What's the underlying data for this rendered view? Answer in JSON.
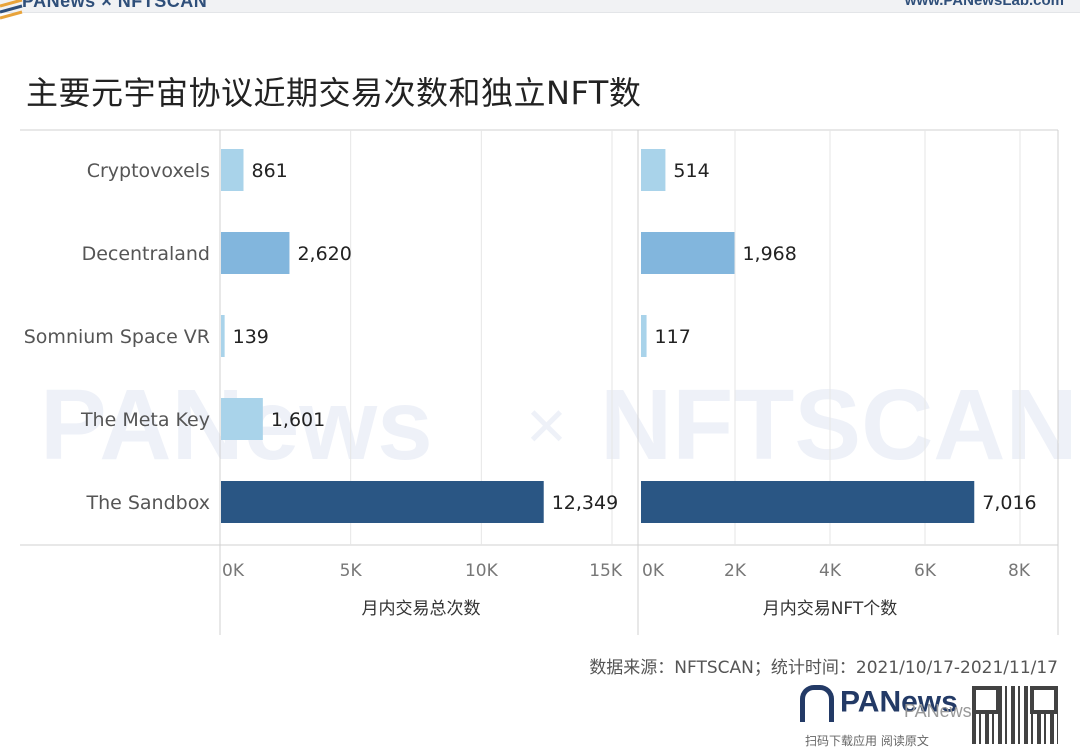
{
  "header": {
    "brand": "PANews × NFTSCAN",
    "url": "www.PANewsLab.com"
  },
  "title": "主要元宇宙协议近期交易次数和独立NFT数",
  "source": "数据来源：NFTSCAN；统计时间：2021/10/17-2021/11/17",
  "footer": {
    "logo_text": "PANews",
    "wechat_watermark": "PANews",
    "caption": "扫码下载应用 阅读原文"
  },
  "watermark": {
    "left": "PANews",
    "cross": "×",
    "right": "NFTSCAN"
  },
  "colors": {
    "light": "#a9d3ea",
    "mid": "#82b6dd",
    "dark": "#2a5684",
    "grid": "#e6e6e6",
    "divider": "#d0d0d0"
  },
  "chart_data": {
    "type": "bar",
    "orientation": "horizontal",
    "categories": [
      "Cryptovoxels",
      "Decentraland",
      "Somnium Space VR",
      "The Meta Key",
      "The Sandbox"
    ],
    "panels": [
      {
        "name": "月内交易总次数",
        "xlabel": "月内交易总次数",
        "values": [
          861,
          2620,
          139,
          1601,
          12349
        ],
        "value_labels": [
          "861",
          "2,620",
          "139",
          "1,601",
          "12,349"
        ],
        "xlim": [
          0,
          15000
        ],
        "ticks": [
          0,
          5000,
          10000,
          15000
        ],
        "tick_labels": [
          "0K",
          "5K",
          "10K",
          "15K"
        ]
      },
      {
        "name": "月内交易NFT个数",
        "xlabel": "月内交易NFT个数",
        "values": [
          514,
          1968,
          117,
          0,
          7016
        ],
        "value_labels": [
          "514",
          "1,968",
          "117",
          "",
          "7,016"
        ],
        "xlim": [
          0,
          8000
        ],
        "ticks": [
          0,
          2000,
          4000,
          6000,
          8000
        ],
        "tick_labels": [
          "0K",
          "2K",
          "4K",
          "6K",
          "8K"
        ]
      }
    ],
    "grid": true,
    "legend": "none"
  }
}
